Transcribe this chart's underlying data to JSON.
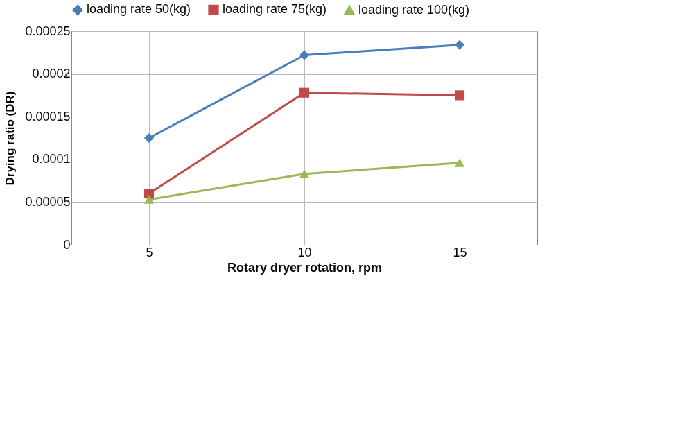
{
  "chart_data": {
    "type": "line",
    "xlabel": "Rotary dryer rotation, rpm",
    "ylabel": "Drying ratio (DR)",
    "categories": [
      "5",
      "10",
      "15"
    ],
    "ylim": [
      0,
      0.00025
    ],
    "yticks": [
      0,
      {
        "value": 5e-05,
        "label": "0.00005"
      },
      {
        "value": 0.0001,
        "label": "0.0001"
      },
      {
        "value": 0.00015,
        "label": "0.00015"
      },
      {
        "value": 0.0002,
        "label": "0.0002"
      },
      {
        "value": 0.00025,
        "label": "0.00025"
      }
    ],
    "grid": true,
    "legend": "top",
    "line_style": "solid",
    "series": [
      {
        "name": "loading rate  50(kg)",
        "color": "#4a7ebb",
        "marker": "diamond",
        "values": [
          0.000125,
          0.000222,
          0.000234
        ]
      },
      {
        "name": "loading rate  75(kg)",
        "color": "#be4b48",
        "marker": "square",
        "values": [
          6e-05,
          0.000178,
          0.000175
        ]
      },
      {
        "name": "loading rate  100(kg)",
        "color": "#98b954",
        "marker": "triangle",
        "values": [
          5.3e-05,
          8.3e-05,
          9.6e-05
        ]
      }
    ]
  }
}
